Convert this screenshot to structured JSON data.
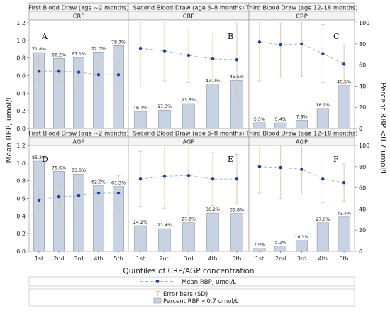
{
  "figure": {
    "y_left_label": "Mean RBP, umol/L",
    "y_right_label": "Percent RBP <0.7 umol/L",
    "x_label": "Quintiles of CRP/AGP concentration",
    "quintiles": [
      "1st",
      "2nd",
      "3rd",
      "4th",
      "5th"
    ],
    "left_ticks": [
      "0.0",
      "0.2",
      "0.4",
      "0.6",
      "0.8",
      "1.0",
      "1.2"
    ],
    "right_ticks": [
      "0",
      "20",
      "40",
      "60",
      "80",
      "100"
    ]
  },
  "legend": {
    "mean_label": "Mean RBP, umol/L",
    "error_label": "Error bars (SD)",
    "percent_label": "Percent RBP <0.7 umol/L"
  },
  "colors": {
    "bar_fill": "#c8d2e3",
    "bar_stroke": "#8f98a8",
    "line": "#9fb6cc",
    "marker": "#1f3f9a",
    "error": "#d9c7a7",
    "header_bg": "#f3f3f3"
  },
  "chart_data": [
    {
      "type": "bar",
      "panel_letter": "A",
      "draw_title": "First Blood Draw (age ~2 months)",
      "marker": "CRP",
      "categories": [
        "1st",
        "2nd",
        "3rd",
        "4th",
        "5th"
      ],
      "percent_low_rbp": [
        71.8,
        66.2,
        67.1,
        72.3,
        78.3
      ],
      "percent_labels": [
        "71.8%",
        "66.2%",
        "67.1%",
        "72.3%",
        "78.3%"
      ],
      "mean_rbp": [
        0.65,
        0.65,
        0.64,
        0.61,
        0.61
      ],
      "sd": [
        0.15,
        0.15,
        0.15,
        0.13,
        0.15
      ],
      "ylim_left": [
        0,
        1.2
      ],
      "ylim_right": [
        0,
        100
      ]
    },
    {
      "type": "bar",
      "panel_letter": "B",
      "draw_title": "Second Blood Draw (age 6–8 months)",
      "marker": "CRP",
      "categories": [
        "1st",
        "2nd",
        "3rd",
        "4th",
        "5th"
      ],
      "percent_low_rbp": [
        16.1,
        17.3,
        23.5,
        42.0,
        45.5
      ],
      "percent_labels": [
        "16.1%",
        "17.3%",
        "23.5%",
        "42.0%",
        "45.5%"
      ],
      "mean_rbp": [
        0.91,
        0.88,
        0.83,
        0.79,
        0.78
      ],
      "sd": [
        0.44,
        0.34,
        0.31,
        0.29,
        0.48
      ],
      "ylim_left": [
        0,
        1.2
      ],
      "ylim_right": [
        0,
        100
      ]
    },
    {
      "type": "bar",
      "panel_letter": "C",
      "draw_title": "Third Blood Draw (age 12–18 months)",
      "marker": "CRP",
      "categories": [
        "1st",
        "2nd",
        "3rd",
        "4th",
        "5th"
      ],
      "percent_low_rbp": [
        5.5,
        5.4,
        7.8,
        18.9,
        40.5
      ],
      "percent_labels": [
        "5.5%",
        "5.4%",
        "7.8%",
        "18.9%",
        "40.5%"
      ],
      "mean_rbp": [
        0.98,
        0.95,
        0.96,
        0.85,
        0.73
      ],
      "sd": [
        0.44,
        0.37,
        0.37,
        0.33,
        0.22
      ],
      "ylim_left": [
        0,
        1.2
      ],
      "ylim_right": [
        0,
        100
      ]
    },
    {
      "type": "bar",
      "panel_letter": "D",
      "draw_title": "First Blood Draw (age ~2 months)",
      "marker": "AGP",
      "categories": [
        "1st",
        "2nd",
        "3rd",
        "4th",
        "5th"
      ],
      "percent_low_rbp": [
        85.2,
        75.6,
        73.0,
        62.0,
        61.3
      ],
      "percent_labels": [
        "85.2%",
        "75.6%",
        "73.0%",
        "62.0%",
        "61.3%"
      ],
      "mean_rbp": [
        0.58,
        0.62,
        0.63,
        0.66,
        0.66
      ],
      "sd": [
        0.13,
        0.14,
        0.14,
        0.16,
        0.2
      ],
      "ylim_left": [
        0,
        1.2
      ],
      "ylim_right": [
        0,
        100
      ]
    },
    {
      "type": "bar",
      "panel_letter": "E",
      "draw_title": "Second Blood Draw (age 6–8 months)",
      "marker": "AGP",
      "categories": [
        "1st",
        "2nd",
        "3rd",
        "4th",
        "5th"
      ],
      "percent_low_rbp": [
        24.2,
        21.4,
        27.1,
        36.2,
        35.8
      ],
      "percent_labels": [
        "24.2%",
        "21.4%",
        "27.1%",
        "36.2%",
        "35.8%"
      ],
      "mean_rbp": [
        0.82,
        0.85,
        0.86,
        0.82,
        0.82
      ],
      "sd": [
        0.31,
        0.36,
        0.5,
        0.3,
        0.28
      ],
      "ylim_left": [
        0,
        1.2
      ],
      "ylim_right": [
        0,
        100
      ]
    },
    {
      "type": "bar",
      "panel_letter": "F",
      "draw_title": "Third Blood Draw (age 12–18 months)",
      "marker": "AGP",
      "categories": [
        "1st",
        "2nd",
        "3rd",
        "4th",
        "5th"
      ],
      "percent_low_rbp": [
        2.9,
        5.2,
        10.2,
        27.0,
        32.4
      ],
      "percent_labels": [
        "2.9%",
        "5.2%",
        "10.2%",
        "27.0%",
        "32.4%"
      ],
      "mean_rbp": [
        0.96,
        0.95,
        0.93,
        0.82,
        0.78
      ],
      "sd": [
        0.3,
        0.35,
        0.28,
        0.27,
        0.21
      ],
      "ylim_left": [
        0,
        1.2
      ],
      "ylim_right": [
        0,
        100
      ]
    }
  ]
}
